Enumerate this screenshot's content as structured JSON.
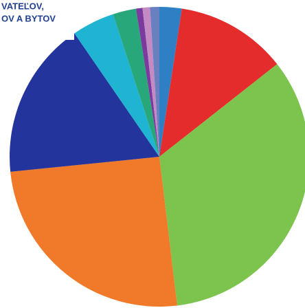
{
  "chart_data": {
    "type": "pie",
    "title_lines": [
      "VATEĽOV,",
      "OV A BYTOV"
    ],
    "values": [
      2.4,
      12,
      33.7,
      25.3,
      17,
      4.6,
      2.5,
      0.7,
      0.8,
      1
    ],
    "colors": [
      "#2f7fc4",
      "#e42c2c",
      "#7cc44e",
      "#f07a2a",
      "#23359c",
      "#1fb4d2",
      "#27a77a",
      "#7a3a9e",
      "#c48ac4",
      "#6a7fc0"
    ]
  }
}
